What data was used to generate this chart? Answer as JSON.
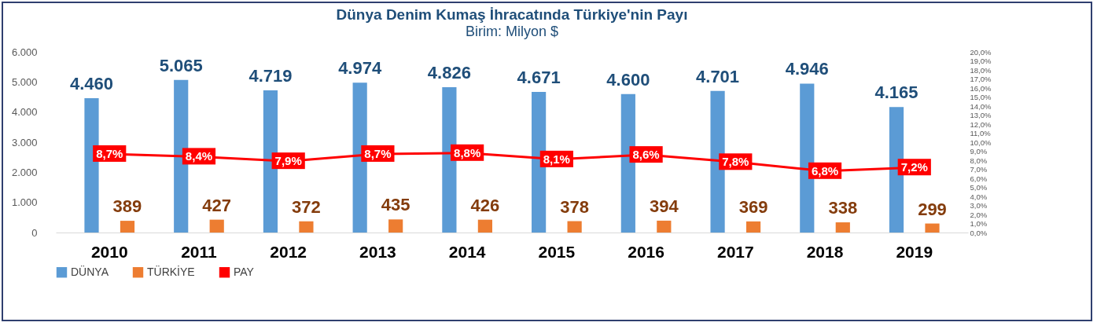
{
  "chart_data": {
    "type": "bar",
    "title": "Dünya Denim Kumaş İhracatında Türkiye'nin Payı",
    "subtitle": "Birim: Milyon $",
    "categories": [
      "2010",
      "2011",
      "2012",
      "2013",
      "2014",
      "2015",
      "2016",
      "2017",
      "2018",
      "2019"
    ],
    "series": [
      {
        "name": "DÜNYA",
        "color": "#5b9bd5",
        "values": [
          4460,
          5065,
          4719,
          4974,
          4826,
          4671,
          4600,
          4701,
          4946,
          4165
        ],
        "value_labels": [
          "4.460",
          "5.065",
          "4.719",
          "4.974",
          "4.826",
          "4.671",
          "4.600",
          "4.701",
          "4.946",
          "4.165"
        ]
      },
      {
        "name": "TÜRKİYE",
        "color": "#ed7d31",
        "values": [
          389,
          427,
          372,
          435,
          426,
          378,
          394,
          369,
          338,
          299
        ],
        "value_labels": [
          "389",
          "427",
          "372",
          "435",
          "426",
          "378",
          "394",
          "369",
          "338",
          "299"
        ]
      },
      {
        "name": "PAY",
        "type": "line",
        "axis": "y2",
        "color": "#ff0000",
        "values": [
          8.7,
          8.4,
          7.9,
          8.7,
          8.8,
          8.1,
          8.6,
          7.8,
          6.8,
          7.2
        ],
        "value_labels": [
          "8,7%",
          "8,4%",
          "7,9%",
          "8,7%",
          "8,8%",
          "8,1%",
          "8,6%",
          "7,8%",
          "6,8%",
          "7,2%"
        ]
      }
    ],
    "ylim": [
      0,
      6000
    ],
    "yticks": [
      {
        "value": 0,
        "label": "0"
      },
      {
        "value": 1000,
        "label": "1.000"
      },
      {
        "value": 2000,
        "label": "2.000"
      },
      {
        "value": 3000,
        "label": "3.000"
      },
      {
        "value": 4000,
        "label": "4.000"
      },
      {
        "value": 5000,
        "label": "5.000"
      },
      {
        "value": 6000,
        "label": "6.000"
      }
    ],
    "y2lim": [
      0,
      20
    ],
    "y2ticks": [
      {
        "value": 0,
        "label": "0,0%"
      },
      {
        "value": 1,
        "label": "1,0%"
      },
      {
        "value": 2,
        "label": "2,0%"
      },
      {
        "value": 3,
        "label": "3,0%"
      },
      {
        "value": 4,
        "label": "4,0%"
      },
      {
        "value": 5,
        "label": "5,0%"
      },
      {
        "value": 6,
        "label": "6,0%"
      },
      {
        "value": 7,
        "label": "7,0%"
      },
      {
        "value": 8,
        "label": "8,0%"
      },
      {
        "value": 9,
        "label": "9,0%"
      },
      {
        "value": 10,
        "label": "10,0%"
      },
      {
        "value": 11,
        "label": "11,0%"
      },
      {
        "value": 12,
        "label": "12,0%"
      },
      {
        "value": 13,
        "label": "13,0%"
      },
      {
        "value": 14,
        "label": "14,0%"
      },
      {
        "value": 15,
        "label": "15,0%"
      },
      {
        "value": 16,
        "label": "16,0%"
      },
      {
        "value": 17,
        "label": "17,0%"
      },
      {
        "value": 18,
        "label": "18,0%"
      },
      {
        "value": 19,
        "label": "19,0%"
      },
      {
        "value": 20,
        "label": "20,0%"
      }
    ],
    "marker": "square",
    "grid": false,
    "legend": "bottom",
    "line_style": "solid"
  }
}
